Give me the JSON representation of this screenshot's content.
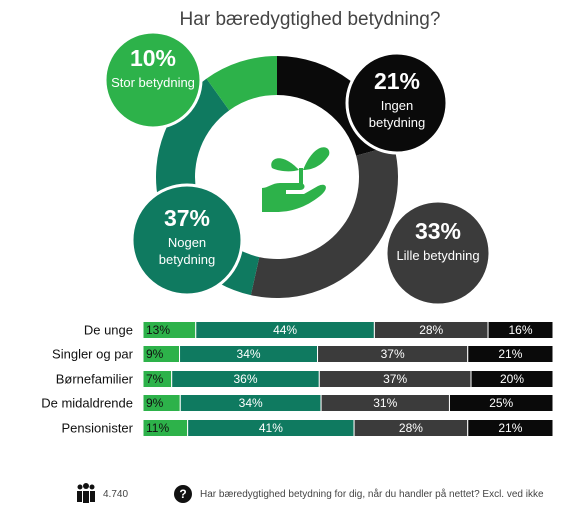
{
  "title": "Har bæredygtighed betydning?",
  "chart_data": [
    {
      "type": "donut",
      "categories": [
        "Ingen betydning",
        "Lille betydning",
        "Nogen betydning",
        "Stor betydning"
      ],
      "values": [
        21,
        33,
        37,
        10
      ],
      "value_labels": [
        "21%",
        "33%",
        "37%",
        "10%"
      ],
      "colors": [
        "#0a0a0a",
        "#3b3b3b",
        "#0f7a60",
        "#2db24a"
      ]
    },
    {
      "type": "stacked-bar-h",
      "categories": [
        "De unge",
        "Singler og par",
        "Børnefamilier",
        "De midaldrende",
        "Pensionister"
      ],
      "series": [
        {
          "color": "#2db24a",
          "values": [
            13,
            9,
            7,
            9,
            11
          ],
          "value_labels": [
            "13%",
            "9%",
            "7%",
            "9%",
            "11%"
          ]
        },
        {
          "color": "#0f7a60",
          "values": [
            44,
            34,
            36,
            34,
            41
          ],
          "value_labels": [
            "44%",
            "34%",
            "36%",
            "34%",
            "41%"
          ]
        },
        {
          "color": "#3b3b3b",
          "values": [
            28,
            37,
            37,
            31,
            28
          ],
          "value_labels": [
            "28%",
            "37%",
            "37%",
            "31%",
            "28%"
          ]
        },
        {
          "color": "#0a0a0a",
          "values": [
            16,
            21,
            20,
            25,
            21
          ],
          "value_labels": [
            "16%",
            "21%",
            "20%",
            "25%",
            "21%"
          ]
        }
      ]
    }
  ],
  "footer": {
    "respondents": "4.740",
    "question": "Har bæredygtighed betydning for dig, når du handler på nettet? Excl. ved ikke"
  }
}
